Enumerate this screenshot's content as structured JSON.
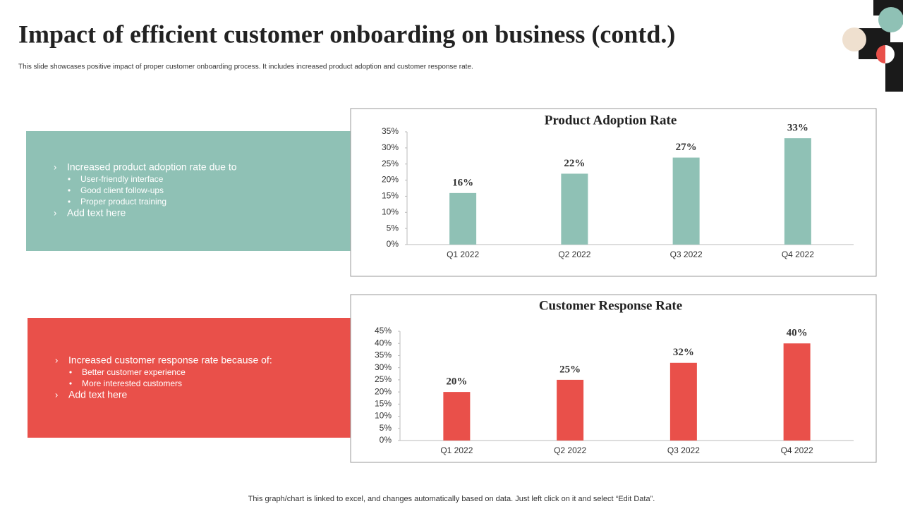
{
  "title": "Impact of efficient customer onboarding on business (contd.)",
  "subtitle": "This slide showcases positive impact of proper customer onboarding process. It includes increased product adoption and customer response rate.",
  "panels": [
    {
      "points": [
        {
          "text": "Increased product adoption rate due to",
          "sub": [
            "User-friendly  interface",
            "Good client follow-ups",
            "Proper product training"
          ]
        },
        {
          "text": "Add text here"
        }
      ]
    },
    {
      "points": [
        {
          "text": "Increased customer response rate because of:",
          "sub": [
            "Better customer experience",
            "More interested customers"
          ]
        },
        {
          "text": "Add text here"
        }
      ]
    }
  ],
  "footer": "This graph/chart is linked to excel,  and changes automatically based on data. Just left click on it and select “Edit Data”.",
  "chart_data": [
    {
      "type": "bar",
      "title": "Product Adoption Rate",
      "categories": [
        "Q1 2022",
        "Q2 2022",
        "Q3 2022",
        "Q4 2022"
      ],
      "values": [
        16,
        22,
        27,
        33
      ],
      "value_labels": [
        "16%",
        "22%",
        "27%",
        "33%"
      ],
      "color": "#8fc1b5",
      "ylim": [
        0,
        35
      ],
      "yticks": [
        {
          "value": 0,
          "label": "0%"
        },
        {
          "value": 5,
          "label": "5%"
        },
        {
          "value": 10,
          "label": "10%"
        },
        {
          "value": 15,
          "label": "15%"
        },
        {
          "value": 20,
          "label": "20%"
        },
        {
          "value": 25,
          "label": "25%"
        },
        {
          "value": 30,
          "label": "30%"
        },
        {
          "value": 35,
          "label": "35%"
        }
      ]
    },
    {
      "type": "bar",
      "title": "Customer Response Rate",
      "categories": [
        "Q1 2022",
        "Q2 2022",
        "Q3 2022",
        "Q4 2022"
      ],
      "values": [
        20,
        25,
        32,
        40
      ],
      "value_labels": [
        "20%",
        "25%",
        "32%",
        "40%"
      ],
      "color": "#e9504a",
      "ylim": [
        0,
        45
      ],
      "yticks": [
        {
          "value": 0,
          "label": "0%"
        },
        {
          "value": 5,
          "label": "5%"
        },
        {
          "value": 10,
          "label": "10%"
        },
        {
          "value": 15,
          "label": "15%"
        },
        {
          "value": 20,
          "label": "20%"
        },
        {
          "value": 25,
          "label": "25%"
        },
        {
          "value": 30,
          "label": "30%"
        },
        {
          "value": 35,
          "label": "35%"
        },
        {
          "value": 40,
          "label": "40%"
        },
        {
          "value": 45,
          "label": "45%"
        }
      ]
    }
  ]
}
